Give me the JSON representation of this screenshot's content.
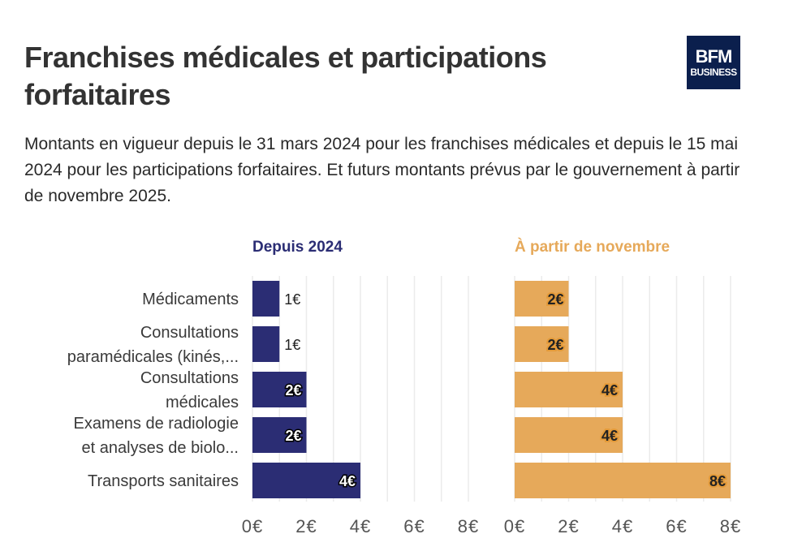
{
  "title": "Franchises médicales et participations forfaitaires",
  "subtitle": "Montants en vigueur depuis le 31 mars 2024 pour les franchises médicales et depuis le 15 mai 2024 pour les participations forfaitaires. Et futurs montants prévus par le gouvernement à partir de novembre 2025.",
  "logo": {
    "line1": "BFM",
    "line2": "BUSINESS",
    "color": "#0b1f4d"
  },
  "chart_data": {
    "type": "bar",
    "orientation": "horizontal",
    "categories": [
      "Médicaments",
      "Consultations paramédicales (kinés,...",
      "Consultations médicales",
      "Examens de radiologie et analyses de biolo...",
      "Transports sanitaires"
    ],
    "category_lines": [
      [
        "Médicaments"
      ],
      [
        "Consultations",
        "paramédicales (kinés,..."
      ],
      [
        "Consultations",
        "médicales"
      ],
      [
        "Examens de radiologie",
        "et analyses de biolo..."
      ],
      [
        "Transports sanitaires"
      ]
    ],
    "panels": [
      {
        "name": "Depuis 2024",
        "color": "#2b2d74",
        "values": [
          1,
          1,
          2,
          2,
          4
        ],
        "value_labels": [
          "1€",
          "1€",
          "2€",
          "2€",
          "4€"
        ]
      },
      {
        "name": "À partir de novembre",
        "color": "#e6a95a",
        "values": [
          2,
          2,
          4,
          4,
          8
        ],
        "value_labels": [
          "2€",
          "2€",
          "4€",
          "4€",
          "8€"
        ]
      }
    ],
    "xlim": [
      0,
      8
    ],
    "xticks": [
      0,
      2,
      4,
      6,
      8
    ],
    "xtick_labels": [
      "0€",
      "2€",
      "4€",
      "6€",
      "8€"
    ],
    "xlabel": "",
    "ylabel": "",
    "grid": true,
    "value_label_threshold": 2
  }
}
